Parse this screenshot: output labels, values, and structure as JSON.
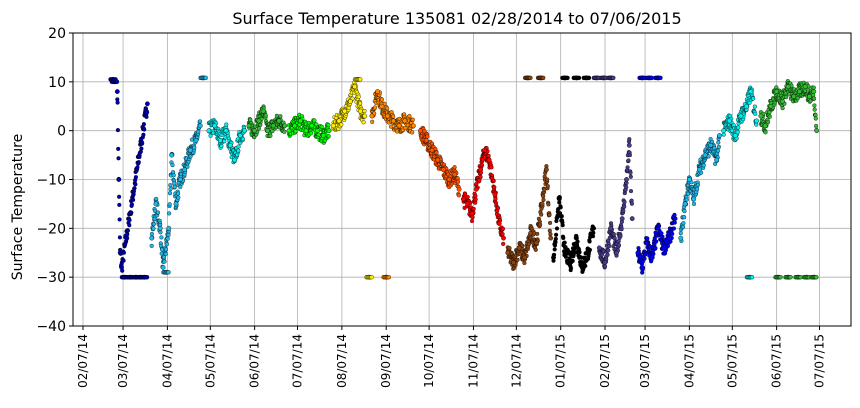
{
  "chart_data": {
    "type": "scatter",
    "title": "Surface Temperature 135081  02/28/2014 to 07/06/2015",
    "xlabel": "",
    "ylabel": "Surface Temperature",
    "ylim": [
      -40,
      20
    ],
    "xlim": [
      "2014-01-31",
      "2015-07-29"
    ],
    "yticks": [
      -40,
      -30,
      -20,
      -10,
      0,
      10,
      20
    ],
    "xticks": [
      {
        "date": "2014-02-07",
        "label": "02/07/14"
      },
      {
        "date": "2014-03-07",
        "label": "03/07/14"
      },
      {
        "date": "2014-04-07",
        "label": "04/07/14"
      },
      {
        "date": "2014-05-07",
        "label": "05/07/14"
      },
      {
        "date": "2014-06-07",
        "label": "06/07/14"
      },
      {
        "date": "2014-07-07",
        "label": "07/07/14"
      },
      {
        "date": "2014-08-07",
        "label": "08/07/14"
      },
      {
        "date": "2014-09-07",
        "label": "09/07/14"
      },
      {
        "date": "2014-10-07",
        "label": "10/07/14"
      },
      {
        "date": "2014-11-07",
        "label": "11/07/14"
      },
      {
        "date": "2014-12-07",
        "label": "12/07/14"
      },
      {
        "date": "2015-01-07",
        "label": "01/07/15"
      },
      {
        "date": "2015-02-07",
        "label": "02/07/15"
      },
      {
        "date": "2015-03-07",
        "label": "03/07/15"
      },
      {
        "date": "2015-04-07",
        "label": "04/07/15"
      },
      {
        "date": "2015-05-07",
        "label": "05/07/15"
      },
      {
        "date": "2015-06-07",
        "label": "06/07/15"
      },
      {
        "date": "2015-07-07",
        "label": "07/07/15"
      }
    ],
    "grid": true,
    "legend": "none",
    "series": [
      {
        "color": "#0000aa",
        "points": [
          [
            "2014-02-28",
            10.5
          ],
          [
            "2014-03-01",
            10
          ],
          [
            "2014-03-03",
            8
          ],
          [
            "2014-03-04",
            -10
          ],
          [
            "2014-03-05",
            -25
          ],
          [
            "2014-03-06",
            -28
          ],
          [
            "2014-03-08",
            -30
          ],
          [
            "2014-03-12",
            -30
          ],
          [
            "2014-03-16",
            -30
          ],
          [
            "2014-03-19",
            -30
          ],
          [
            "2014-03-22",
            -30
          ],
          [
            "2014-03-24",
            5.5
          ]
        ]
      },
      {
        "color": "#1fb8e8",
        "points": [
          [
            "2014-03-27",
            -22
          ],
          [
            "2014-03-30",
            -15
          ],
          [
            "2014-04-02",
            -20
          ],
          [
            "2014-04-04",
            -28
          ],
          [
            "2014-04-06",
            -29
          ],
          [
            "2014-04-08",
            -20
          ],
          [
            "2014-04-10",
            -5
          ],
          [
            "2014-04-13",
            -15
          ],
          [
            "2014-04-16",
            -10
          ],
          [
            "2014-04-19",
            -8
          ],
          [
            "2014-04-23",
            -4
          ],
          [
            "2014-04-27",
            -2
          ],
          [
            "2014-04-30",
            1
          ],
          [
            "2014-05-02",
            10.8
          ]
        ]
      },
      {
        "color": "#00f0f0",
        "points": [
          [
            "2014-05-06",
            0
          ],
          [
            "2014-05-10",
            1
          ],
          [
            "2014-05-14",
            -2
          ],
          [
            "2014-05-18",
            0
          ],
          [
            "2014-05-21",
            -3
          ],
          [
            "2014-05-24",
            -6
          ],
          [
            "2014-05-28",
            -1
          ],
          [
            "2014-05-31",
            0
          ]
        ]
      },
      {
        "color": "#33bb33",
        "points": [
          [
            "2014-06-03",
            1
          ],
          [
            "2014-06-07",
            0
          ],
          [
            "2014-06-10",
            2
          ],
          [
            "2014-06-13",
            4
          ],
          [
            "2014-06-16",
            0
          ],
          [
            "2014-06-20",
            1
          ],
          [
            "2014-06-24",
            2
          ],
          [
            "2014-06-28",
            1
          ]
        ]
      },
      {
        "color": "#00ff00",
        "points": [
          [
            "2014-07-01",
            0
          ],
          [
            "2014-07-05",
            1
          ],
          [
            "2014-07-09",
            2
          ],
          [
            "2014-07-13",
            0
          ],
          [
            "2014-07-17",
            1
          ],
          [
            "2014-07-21",
            0
          ],
          [
            "2014-07-25",
            -1
          ],
          [
            "2014-07-29",
            0
          ]
        ]
      },
      {
        "color": "#ffee00",
        "points": [
          [
            "2014-08-01",
            1
          ],
          [
            "2014-08-05",
            2
          ],
          [
            "2014-08-09",
            4
          ],
          [
            "2014-08-13",
            6
          ],
          [
            "2014-08-16",
            9
          ],
          [
            "2014-08-18",
            10.5
          ],
          [
            "2014-08-20",
            4
          ],
          [
            "2014-08-23",
            3
          ],
          [
            "2014-08-26",
            -30
          ]
        ]
      },
      {
        "color": "#ff8800",
        "points": [
          [
            "2014-08-28",
            3
          ],
          [
            "2014-09-01",
            8
          ],
          [
            "2014-09-04",
            5
          ],
          [
            "2014-09-08",
            3
          ],
          [
            "2014-09-12",
            2
          ],
          [
            "2014-09-16",
            1
          ],
          [
            "2014-09-20",
            2
          ],
          [
            "2014-09-26",
            1
          ],
          [
            "2014-09-07",
            -30
          ]
        ]
      },
      {
        "color": "#ff5500",
        "points": [
          [
            "2014-10-01",
            0
          ],
          [
            "2014-10-05",
            -2
          ],
          [
            "2014-10-09",
            -4
          ],
          [
            "2014-10-13",
            -6
          ],
          [
            "2014-10-17",
            -8
          ],
          [
            "2014-10-21",
            -10
          ],
          [
            "2014-10-25",
            -9
          ],
          [
            "2014-10-28",
            -12
          ]
        ]
      },
      {
        "color": "#ff0000",
        "points": [
          [
            "2014-10-31",
            -14
          ],
          [
            "2014-11-03",
            -15
          ],
          [
            "2014-11-06",
            -17
          ],
          [
            "2014-11-09",
            -12
          ],
          [
            "2014-11-12",
            -8
          ],
          [
            "2014-11-15",
            -4
          ],
          [
            "2014-11-18",
            -6
          ],
          [
            "2014-11-22",
            -13
          ],
          [
            "2014-11-25",
            -19
          ],
          [
            "2014-11-28",
            -22
          ]
        ]
      },
      {
        "color": "#8b4513",
        "points": [
          [
            "2014-12-01",
            -25
          ],
          [
            "2014-12-05",
            -27
          ],
          [
            "2014-12-09",
            -24
          ],
          [
            "2014-12-13",
            -26
          ],
          [
            "2014-12-17",
            -21
          ],
          [
            "2014-12-21",
            -23
          ],
          [
            "2014-12-25",
            -15
          ],
          [
            "2014-12-28",
            -8
          ],
          [
            "2014-12-31",
            -22
          ],
          [
            "2014-12-15",
            10.8
          ],
          [
            "2014-12-24",
            10.8
          ]
        ]
      },
      {
        "color": "#000000",
        "points": [
          [
            "2015-01-02",
            -26
          ],
          [
            "2015-01-06",
            -14
          ],
          [
            "2015-01-10",
            -25
          ],
          [
            "2015-01-14",
            -27
          ],
          [
            "2015-01-18",
            -22
          ],
          [
            "2015-01-22",
            -28
          ],
          [
            "2015-01-26",
            -25
          ],
          [
            "2015-01-30",
            -20
          ],
          [
            "2015-01-10",
            10.8
          ],
          [
            "2015-01-18",
            10.8
          ],
          [
            "2015-01-25",
            10.8
          ]
        ]
      },
      {
        "color": "#483d8b",
        "points": [
          [
            "2015-02-03",
            -24
          ],
          [
            "2015-02-07",
            -27
          ],
          [
            "2015-02-11",
            -20
          ],
          [
            "2015-02-15",
            -25
          ],
          [
            "2015-02-19",
            -18
          ],
          [
            "2015-02-22",
            -10
          ],
          [
            "2015-02-24",
            -3
          ],
          [
            "2015-02-26",
            -18
          ],
          [
            "2015-02-01",
            10.8
          ],
          [
            "2015-02-06",
            10.8
          ],
          [
            "2015-02-11",
            10.8
          ]
        ]
      },
      {
        "color": "#0000ff",
        "points": [
          [
            "2015-03-02",
            -25
          ],
          [
            "2015-03-05",
            -28
          ],
          [
            "2015-03-08",
            -23
          ],
          [
            "2015-03-12",
            -26
          ],
          [
            "2015-03-16",
            -20
          ],
          [
            "2015-03-20",
            -24
          ],
          [
            "2015-03-24",
            -22
          ],
          [
            "2015-03-28",
            -18
          ],
          [
            "2015-03-05",
            10.8
          ],
          [
            "2015-03-10",
            10.8
          ],
          [
            "2015-03-16",
            10.8
          ]
        ]
      },
      {
        "color": "#1fb8e8",
        "points": [
          [
            "2015-04-01",
            -22
          ],
          [
            "2015-04-04",
            -15
          ],
          [
            "2015-04-07",
            -10
          ],
          [
            "2015-04-10",
            -14
          ],
          [
            "2015-04-14",
            -8
          ],
          [
            "2015-04-18",
            -5
          ],
          [
            "2015-04-22",
            -3
          ],
          [
            "2015-04-26",
            -6
          ],
          [
            "2015-04-28",
            -1
          ]
        ]
      },
      {
        "color": "#00f0f0",
        "points": [
          [
            "2015-05-01",
            0
          ],
          [
            "2015-05-05",
            2
          ],
          [
            "2015-05-09",
            -1
          ],
          [
            "2015-05-13",
            3
          ],
          [
            "2015-05-17",
            5
          ],
          [
            "2015-05-20",
            8
          ],
          [
            "2015-05-24",
            2
          ],
          [
            "2015-05-19",
            -30
          ]
        ]
      },
      {
        "color": "#33bb33",
        "points": [
          [
            "2015-05-27",
            3
          ],
          [
            "2015-05-30",
            1
          ],
          [
            "2015-06-03",
            5
          ],
          [
            "2015-06-07",
            8
          ],
          [
            "2015-06-11",
            6
          ],
          [
            "2015-06-15",
            9
          ],
          [
            "2015-06-19",
            7
          ],
          [
            "2015-06-23",
            8
          ],
          [
            "2015-06-27",
            9
          ],
          [
            "2015-06-30",
            7
          ],
          [
            "2015-07-03",
            8
          ],
          [
            "2015-07-05",
            0
          ],
          [
            "2015-06-08",
            -30
          ],
          [
            "2015-06-15",
            -30
          ],
          [
            "2015-06-22",
            -30
          ],
          [
            "2015-06-28",
            -30
          ],
          [
            "2015-07-03",
            -30
          ]
        ]
      }
    ]
  }
}
